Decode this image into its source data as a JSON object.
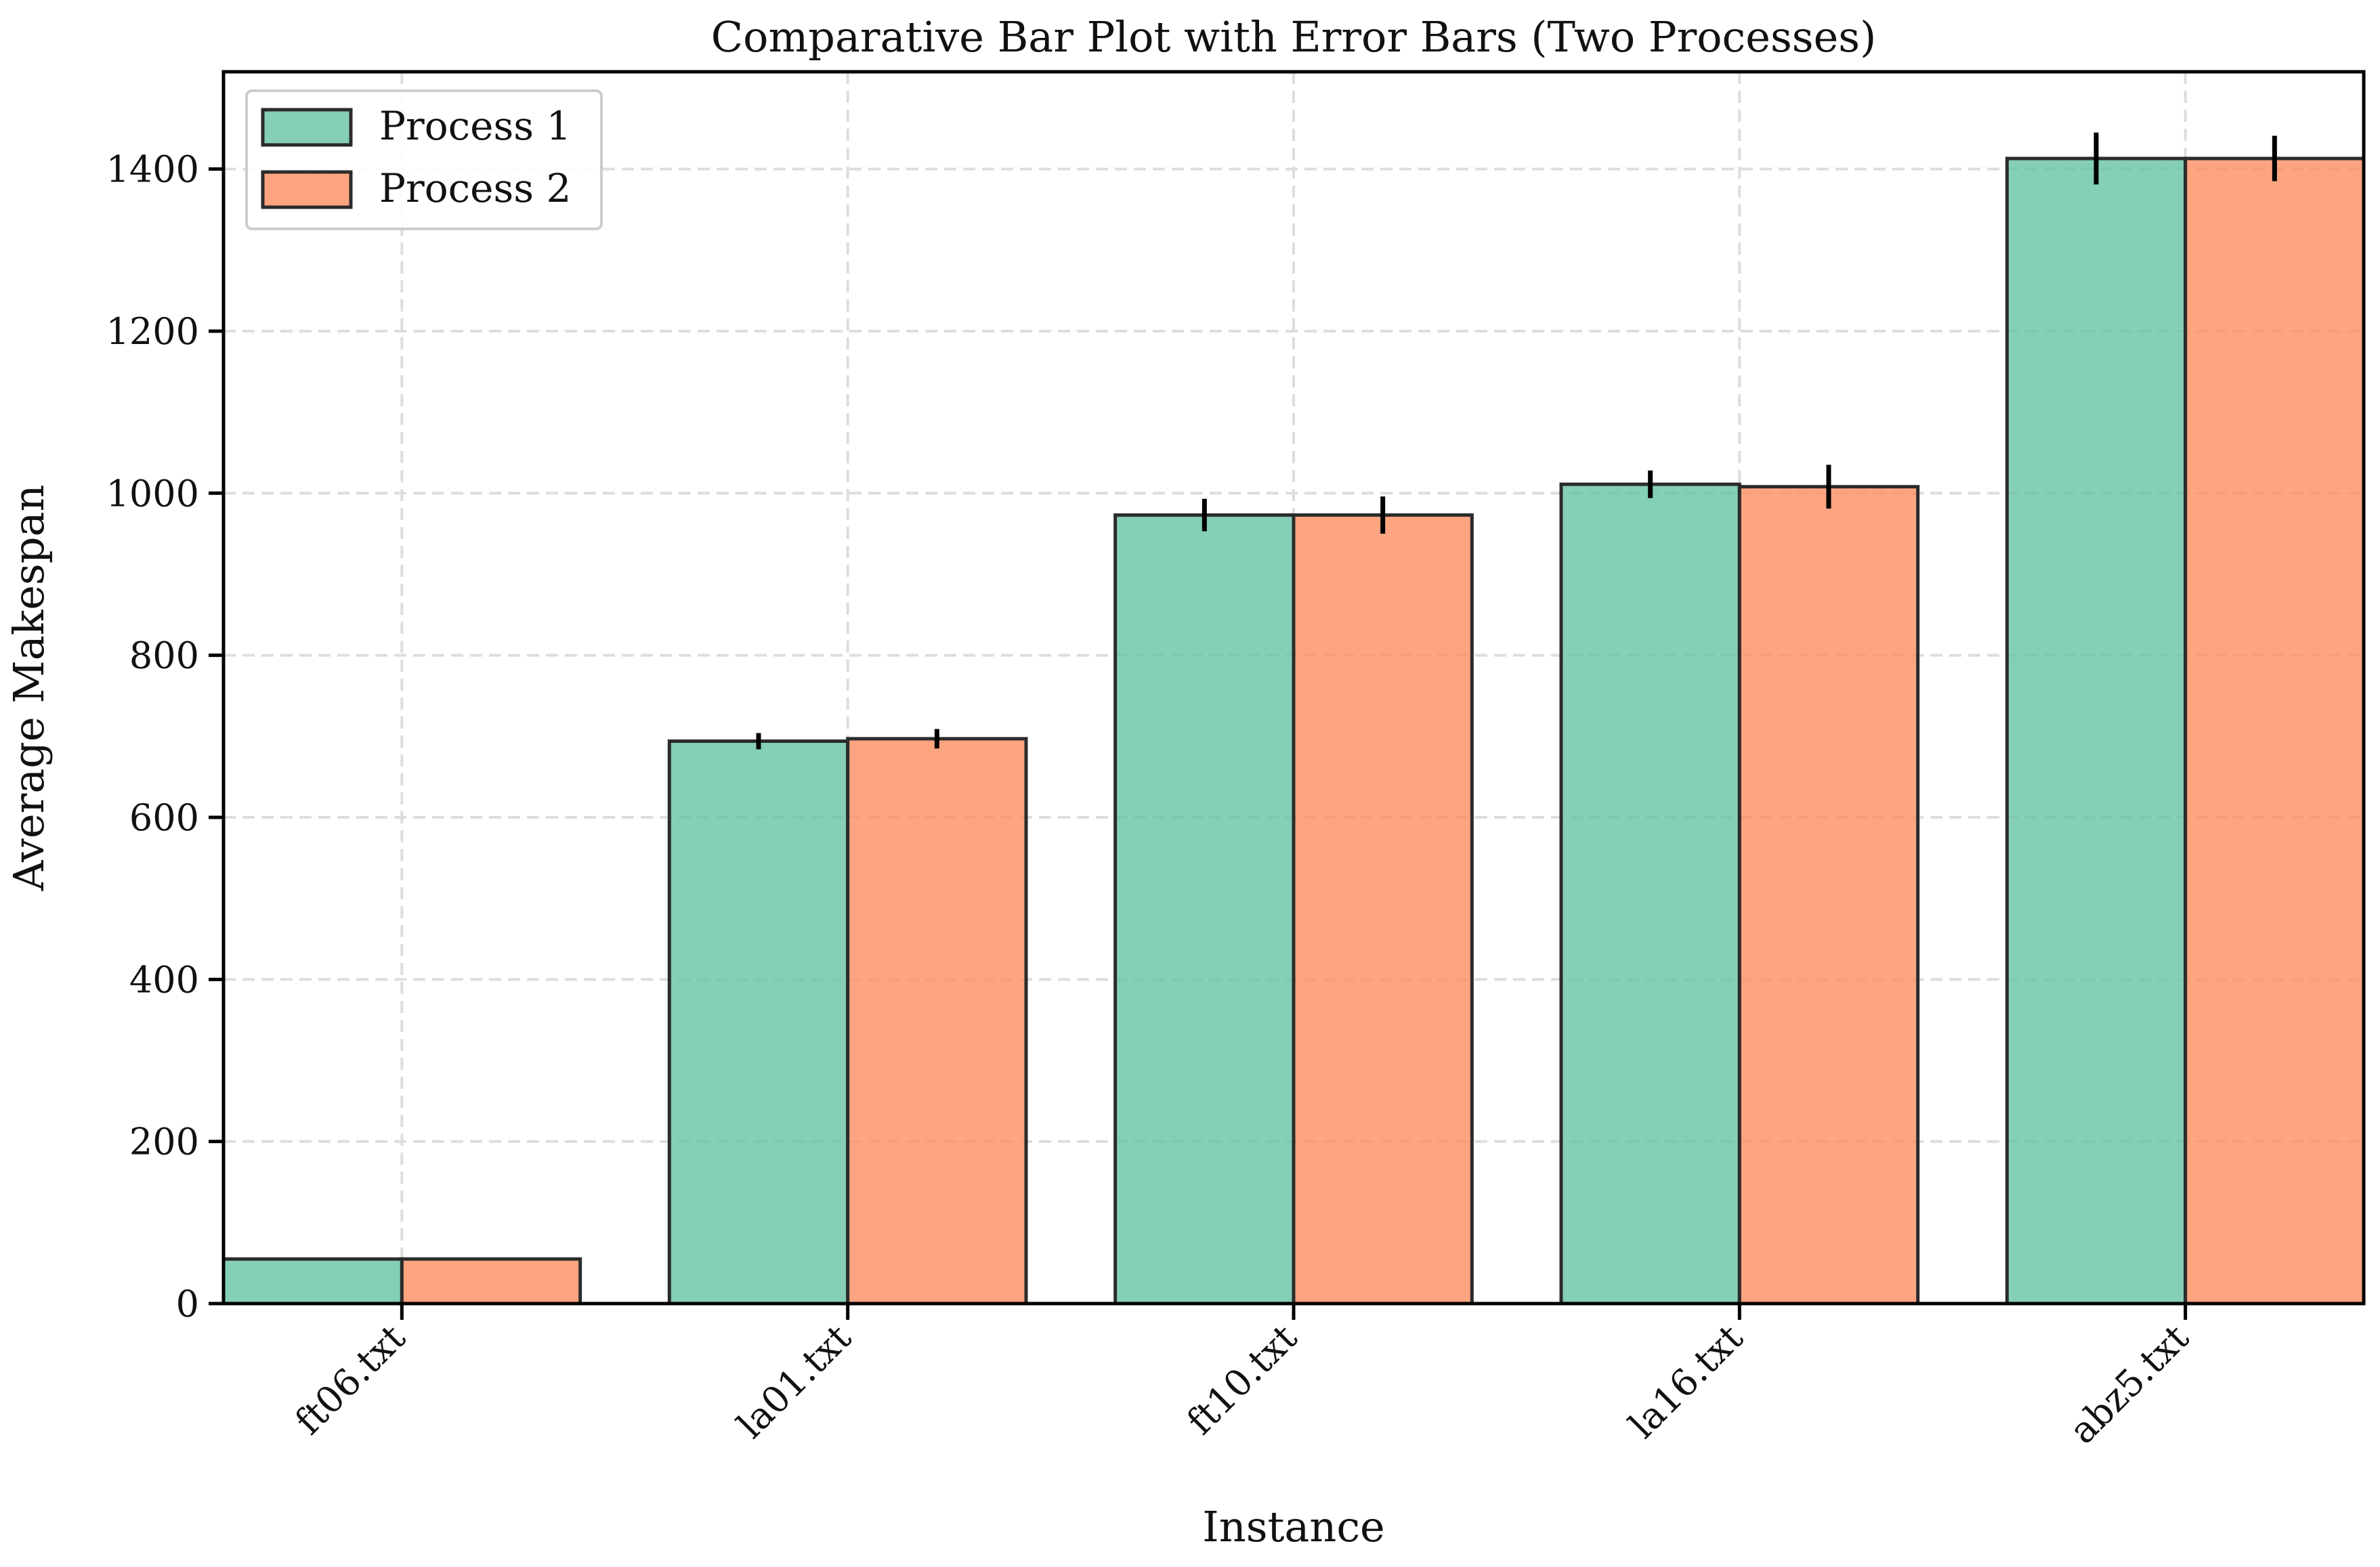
{
  "chart_data": {
    "type": "bar",
    "title": "Comparative Bar Plot with Error Bars (Two Processes)",
    "xlabel": "Instance",
    "ylabel": "Average Makespan",
    "categories": [
      "ft06.txt",
      "la01.txt",
      "ft10.txt",
      "la16.txt",
      "abz5.txt"
    ],
    "series": [
      {
        "name": "Process 1",
        "color": "#66c2a5",
        "values": [
          55,
          694,
          973,
          1011,
          1413
        ],
        "errors": [
          0,
          10,
          20,
          17,
          32
        ]
      },
      {
        "name": "Process 2",
        "color": "#fc8d62",
        "values": [
          55,
          697,
          973,
          1008,
          1413
        ],
        "errors": [
          0,
          12,
          23,
          27,
          28
        ]
      }
    ],
    "ylim": [
      0,
      1520
    ],
    "yticks": [
      0,
      200,
      400,
      600,
      800,
      1000,
      1200,
      1400
    ],
    "grid": true,
    "legend_position": "upper-left"
  }
}
